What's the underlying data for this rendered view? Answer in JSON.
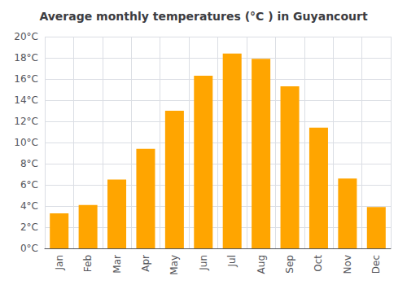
{
  "chart_data": {
    "type": "bar",
    "title": "Average monthly temperatures (°C ) in Guyancourt",
    "categories": [
      "Jan",
      "Feb",
      "Mar",
      "Apr",
      "May",
      "Jun",
      "Jul",
      "Aug",
      "Sep",
      "Oct",
      "Nov",
      "Dec"
    ],
    "values": [
      3.3,
      4.1,
      6.5,
      9.4,
      13.0,
      16.3,
      18.4,
      17.9,
      15.3,
      11.4,
      6.6,
      3.9
    ],
    "color": "#FFA500",
    "ylim": [
      0,
      20
    ],
    "yticks": [
      {
        "value": 0,
        "label": "0°C"
      },
      {
        "value": 2,
        "label": "2°C"
      },
      {
        "value": 4,
        "label": "4°C"
      },
      {
        "value": 6,
        "label": "6°C"
      },
      {
        "value": 8,
        "label": "8°C"
      },
      {
        "value": 10,
        "label": "10°C"
      },
      {
        "value": 12,
        "label": "12°C"
      },
      {
        "value": 14,
        "label": "14°C"
      },
      {
        "value": 16,
        "label": "16°C"
      },
      {
        "value": 18,
        "label": "18°C"
      },
      {
        "value": 20,
        "label": "20°C"
      }
    ],
    "grid": true
  }
}
